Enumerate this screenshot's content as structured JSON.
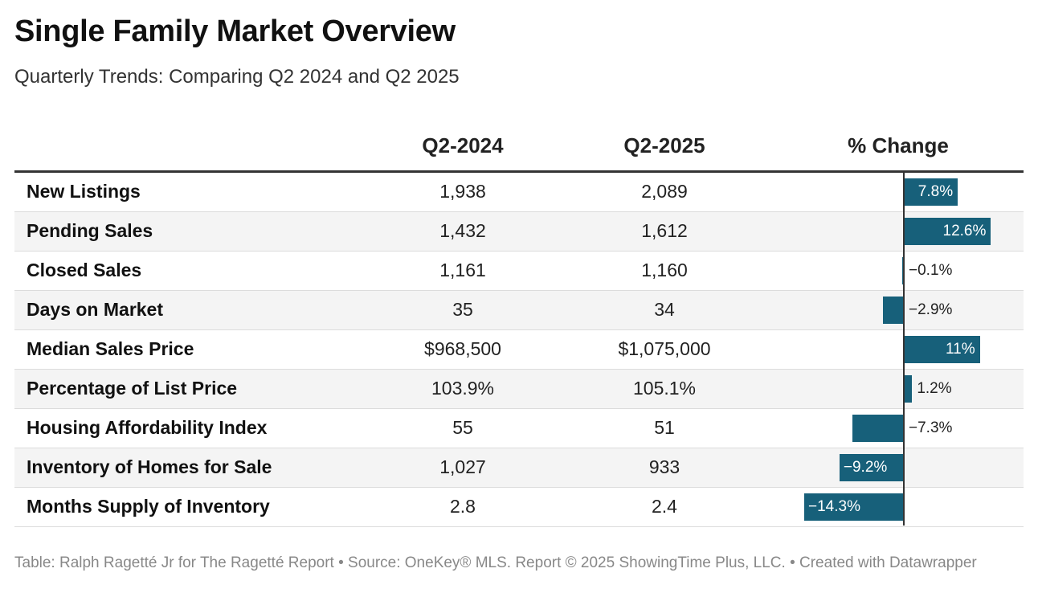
{
  "chart_data": {
    "type": "table",
    "title": "Single Family Market Overview",
    "subtitle": "Quarterly Trends: Comparing Q2 2024 and Q2 2025",
    "columns": [
      "",
      "Q2-2024",
      "Q2-2025",
      "% Change"
    ],
    "rows": [
      {
        "label": "New Listings",
        "q2_2024": "1,938",
        "q2_2025": "2,089",
        "change": 7.8,
        "change_label": "7.8%"
      },
      {
        "label": "Pending Sales",
        "q2_2024": "1,432",
        "q2_2025": "1,612",
        "change": 12.6,
        "change_label": "12.6%"
      },
      {
        "label": "Closed Sales",
        "q2_2024": "1,161",
        "q2_2025": "1,160",
        "change": -0.1,
        "change_label": "−0.1%"
      },
      {
        "label": "Days on Market",
        "q2_2024": "35",
        "q2_2025": "34",
        "change": -2.9,
        "change_label": "−2.9%"
      },
      {
        "label": "Median Sales Price",
        "q2_2024": "$968,500",
        "q2_2025": "$1,075,000",
        "change": 11,
        "change_label": "11%"
      },
      {
        "label": "Percentage of List Price",
        "q2_2024": "103.9%",
        "q2_2025": "105.1%",
        "change": 1.2,
        "change_label": "1.2%"
      },
      {
        "label": "Housing Affordability Index",
        "q2_2024": "55",
        "q2_2025": "51",
        "change": -7.3,
        "change_label": "−7.3%"
      },
      {
        "label": "Inventory of Homes for Sale",
        "q2_2024": "1,027",
        "q2_2025": "933",
        "change": -9.2,
        "change_label": "−9.2%"
      },
      {
        "label": "Months Supply of Inventory",
        "q2_2024": "2.8",
        "q2_2025": "2.4",
        "change": -14.3,
        "change_label": "−14.3%"
      }
    ],
    "bar_color": "#17607a"
  },
  "footer": "Table: Ralph Ragetté Jr for The Ragetté Report • Source: OneKey® MLS. Report © 2025 ShowingTime Plus, LLC. • Created with Datawrapper"
}
